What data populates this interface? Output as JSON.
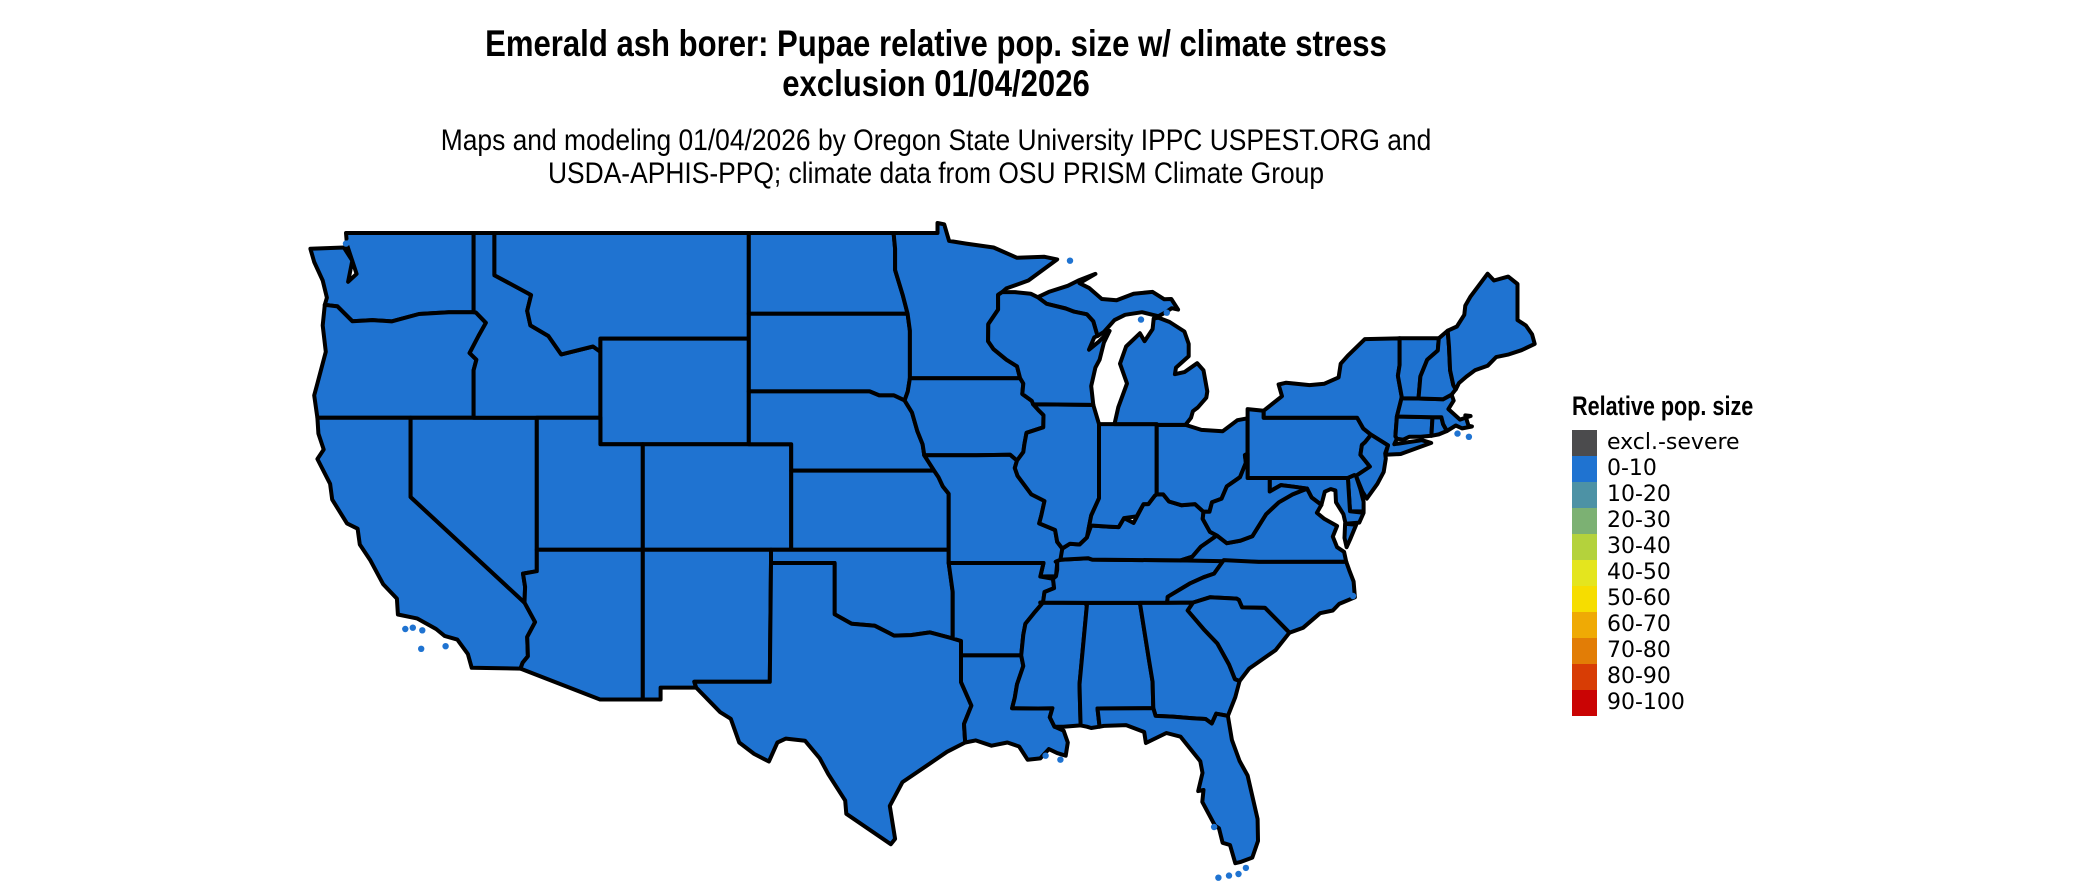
{
  "title": {
    "line1": "Emerald ash borer: Pupae relative pop. size w/ climate stress",
    "line2": "exclusion 01/04/2026"
  },
  "subtitle": {
    "line1": "Maps and modeling 01/04/2026 by Oregon State University IPPC USPEST.ORG and",
    "line2": "USDA-APHIS-PPQ; climate data from OSU PRISM Climate Group"
  },
  "legend": {
    "title": "Relative pop. size",
    "items": [
      {
        "label": "excl.-severe",
        "color": "#4b4b4d"
      },
      {
        "label": "0-10",
        "color": "#1f73d1"
      },
      {
        "label": "10-20",
        "color": "#4d92a5"
      },
      {
        "label": "20-30",
        "color": "#7cb173"
      },
      {
        "label": "30-40",
        "color": "#b4d23c"
      },
      {
        "label": "40-50",
        "color": "#e4e51e"
      },
      {
        "label": "50-60",
        "color": "#f6dd00"
      },
      {
        "label": "60-70",
        "color": "#efaa05"
      },
      {
        "label": "70-80",
        "color": "#e27d06"
      },
      {
        "label": "80-90",
        "color": "#d83d05"
      },
      {
        "label": "90-100",
        "color": "#ca0404"
      }
    ]
  },
  "map": {
    "region": "Conterminous United States",
    "border_color": "#000000",
    "background_color": "#ffffff"
  },
  "chart_data": {
    "type": "choropleth-map",
    "title": "Emerald ash borer: Pupae relative pop. size w/ climate stress exclusion 01/04/2026",
    "legend_title": "Relative pop. size",
    "categories": [
      "excl.-severe",
      "0-10",
      "10-20",
      "20-30",
      "30-40",
      "40-50",
      "50-60",
      "60-70",
      "70-80",
      "80-90",
      "90-100"
    ],
    "states": [
      {
        "id": "WA",
        "value": "0-10"
      },
      {
        "id": "OR",
        "value": "0-10"
      },
      {
        "id": "CA",
        "value": "0-10"
      },
      {
        "id": "NV",
        "value": "0-10"
      },
      {
        "id": "ID",
        "value": "0-10"
      },
      {
        "id": "MT",
        "value": "0-10"
      },
      {
        "id": "WY",
        "value": "0-10"
      },
      {
        "id": "UT",
        "value": "0-10"
      },
      {
        "id": "CO",
        "value": "0-10"
      },
      {
        "id": "AZ",
        "value": "0-10"
      },
      {
        "id": "NM",
        "value": "0-10"
      },
      {
        "id": "ND",
        "value": "0-10"
      },
      {
        "id": "SD",
        "value": "0-10"
      },
      {
        "id": "NE",
        "value": "0-10"
      },
      {
        "id": "KS",
        "value": "0-10"
      },
      {
        "id": "OK",
        "value": "0-10"
      },
      {
        "id": "TX",
        "value": "0-10"
      },
      {
        "id": "MN",
        "value": "0-10"
      },
      {
        "id": "IA",
        "value": "0-10"
      },
      {
        "id": "MO",
        "value": "0-10"
      },
      {
        "id": "AR",
        "value": "0-10"
      },
      {
        "id": "LA",
        "value": "0-10"
      },
      {
        "id": "MS",
        "value": "0-10"
      },
      {
        "id": "AL",
        "value": "0-10"
      },
      {
        "id": "TN",
        "value": "0-10"
      },
      {
        "id": "KY",
        "value": "0-10"
      },
      {
        "id": "IL",
        "value": "0-10"
      },
      {
        "id": "IN",
        "value": "0-10"
      },
      {
        "id": "OH",
        "value": "0-10"
      },
      {
        "id": "MI",
        "value": "0-10"
      },
      {
        "id": "MIUP",
        "value": "0-10"
      },
      {
        "id": "WI",
        "value": "0-10"
      },
      {
        "id": "PA",
        "value": "0-10"
      },
      {
        "id": "NY",
        "value": "0-10"
      },
      {
        "id": "NJ",
        "value": "0-10"
      },
      {
        "id": "DE",
        "value": "0-10"
      },
      {
        "id": "MD",
        "value": "0-10"
      },
      {
        "id": "VA",
        "value": "0-10"
      },
      {
        "id": "WV",
        "value": "0-10"
      },
      {
        "id": "NC",
        "value": "0-10"
      },
      {
        "id": "SC",
        "value": "0-10"
      },
      {
        "id": "GA",
        "value": "0-10"
      },
      {
        "id": "FL",
        "value": "0-10"
      },
      {
        "id": "CT",
        "value": "0-10"
      },
      {
        "id": "RI",
        "value": "0-10"
      },
      {
        "id": "MA",
        "value": "0-10"
      },
      {
        "id": "VT",
        "value": "0-10"
      },
      {
        "id": "NH",
        "value": "0-10"
      },
      {
        "id": "ME",
        "value": "0-10"
      }
    ]
  }
}
